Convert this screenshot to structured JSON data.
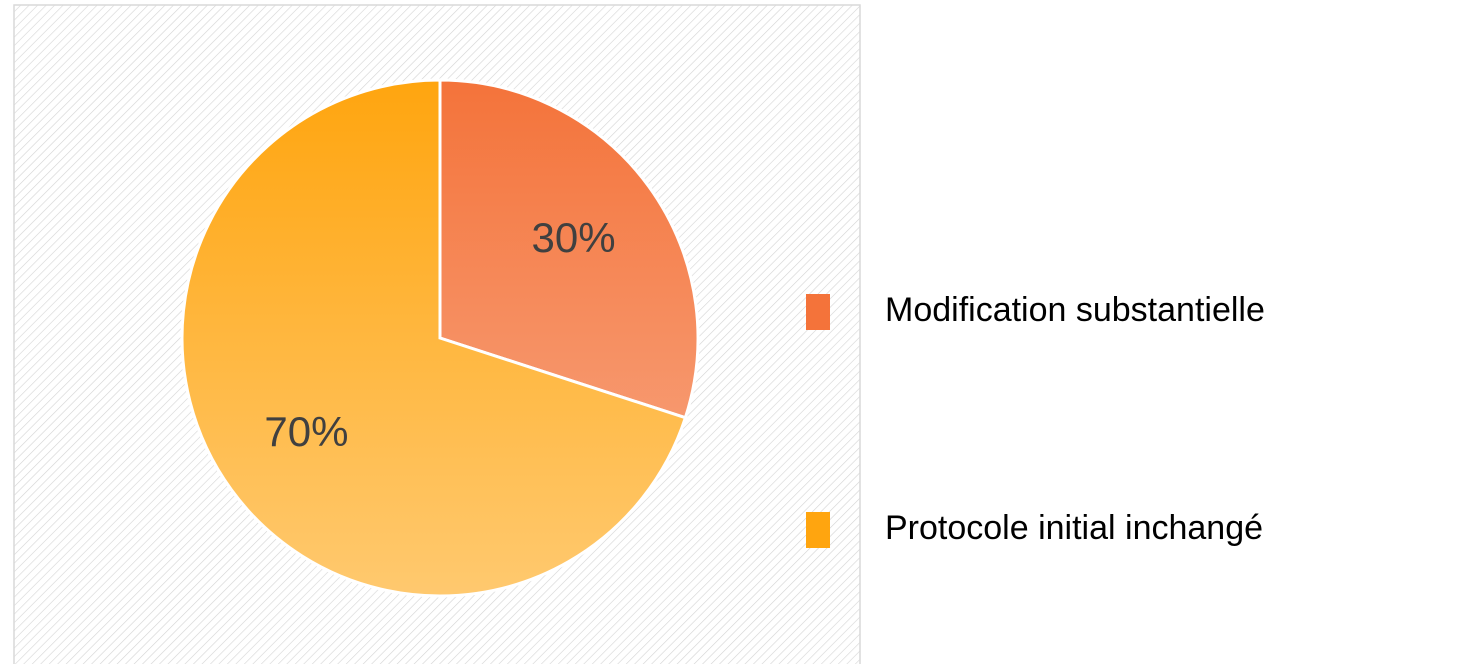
{
  "chart_data": {
    "type": "pie",
    "categories": [
      "Modification substantielle",
      "Protocole initial inchangé"
    ],
    "values": [
      30,
      70
    ],
    "value_labels": [
      "30%",
      "70%"
    ],
    "colors": [
      "#f4733a",
      "#ffa50f"
    ]
  }
}
